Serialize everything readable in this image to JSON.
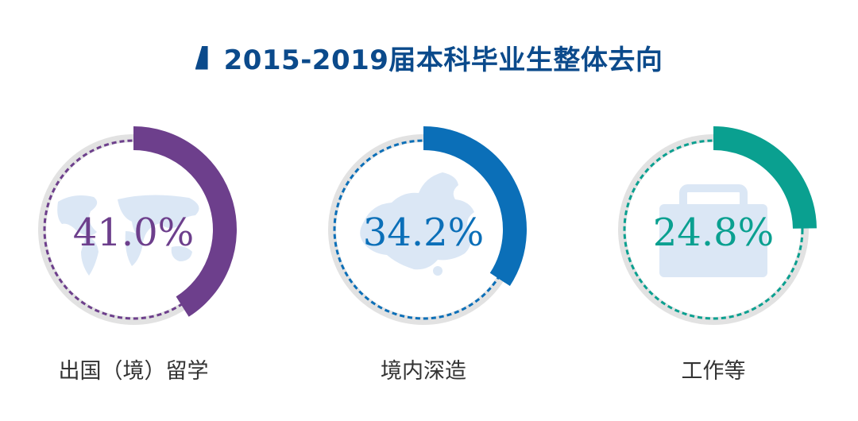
{
  "title": "2015-2019届本科毕业生整体去向",
  "colors": {
    "title": "#0b4a8b",
    "ring_bg": "#e2e2e2",
    "icon_fill": "#dbe7f5"
  },
  "chart_data": {
    "type": "pie",
    "title": "2015-2019届本科毕业生整体去向",
    "unit": "%",
    "series": [
      {
        "name": "出国（境）留学",
        "value": 41.0,
        "label": "41.0%",
        "color": "#6d3f8c",
        "icon": "world-map-icon"
      },
      {
        "name": "境内深造",
        "value": 34.2,
        "label": "34.2%",
        "color": "#0b6fb8",
        "icon": "china-map-icon"
      },
      {
        "name": "工作等",
        "value": 24.8,
        "label": "24.8%",
        "color": "#0aa090",
        "icon": "briefcase-icon"
      }
    ]
  }
}
